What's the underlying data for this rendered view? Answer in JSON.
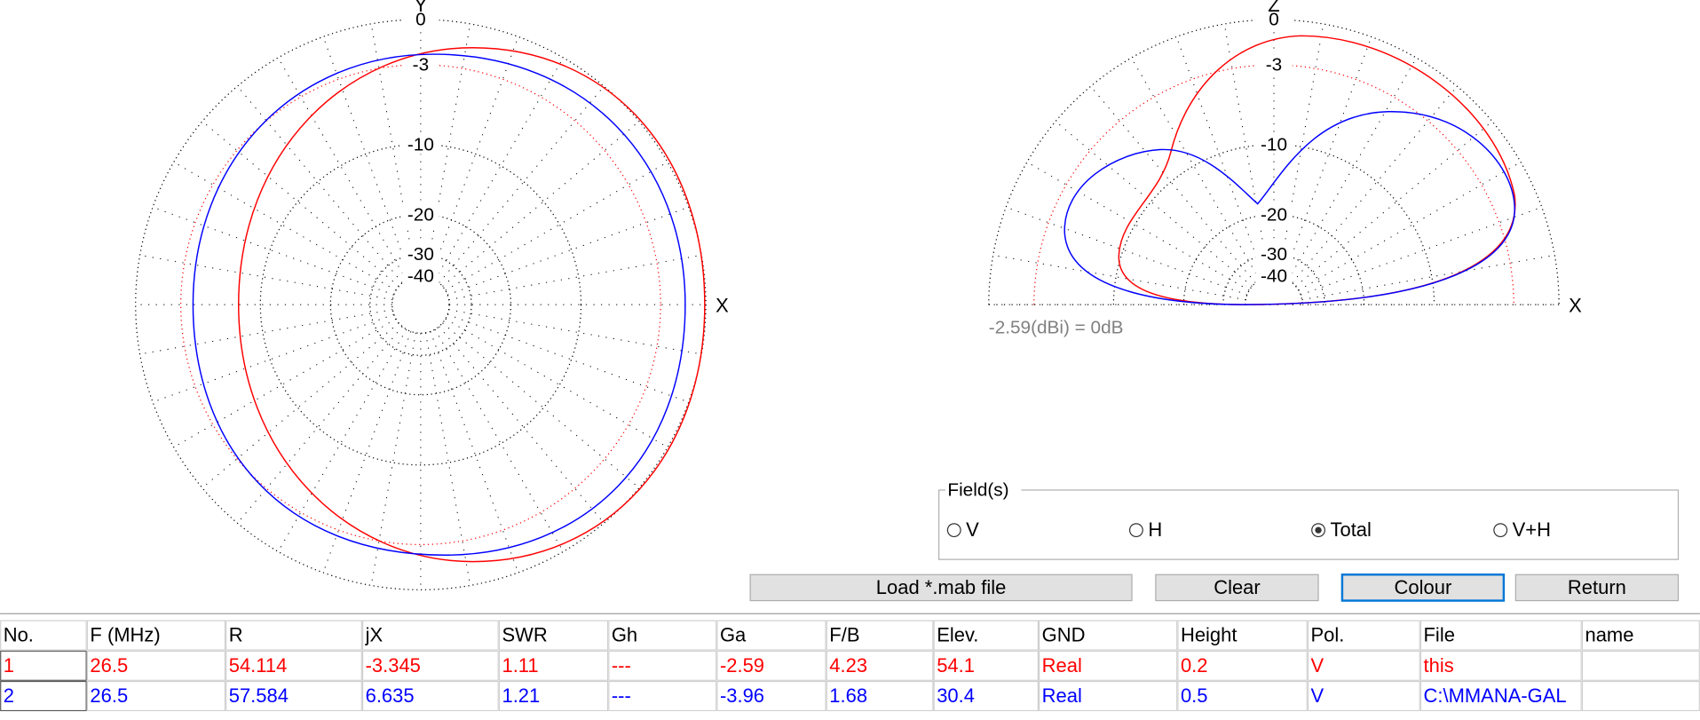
{
  "left_plot": {
    "axis_top": "Y",
    "axis_right": "X",
    "rings": [
      0,
      -3,
      -10,
      -20,
      -30,
      -40
    ],
    "reference_color": "#ff0000"
  },
  "right_plot": {
    "axis_top": "Z",
    "axis_right": "X",
    "rings": [
      0,
      -3,
      -10,
      -20,
      -30,
      -40
    ],
    "reference_color": "#ff0000",
    "reference": "-2.59(dBi) = 0dB"
  },
  "fields": {
    "title": "Field(s)",
    "options": [
      {
        "label": "V",
        "checked": false
      },
      {
        "label": "H",
        "checked": false
      },
      {
        "label": "Total",
        "checked": true
      },
      {
        "label": "V+H",
        "checked": false
      }
    ]
  },
  "buttons": [
    "Load *.mab file",
    "Clear",
    "Colour",
    "Return"
  ],
  "table": {
    "headers": [
      "No.",
      "F (MHz)",
      "R",
      "jX",
      "SWR",
      "Gh",
      "Ga",
      "F/B",
      "Elev.",
      "GND",
      "Height",
      "Pol.",
      "File",
      "name"
    ],
    "row_colors": [
      "#ff0000",
      "#0000ff"
    ],
    "rows": [
      [
        "1",
        "26.5",
        "54.114",
        "-3.345",
        "1.11",
        "---",
        "-2.59",
        "4.23",
        "54.1",
        "Real",
        "0.2",
        "V",
        "this",
        ""
      ],
      [
        "2",
        "26.5",
        "57.584",
        "6.635",
        "1.21",
        "---",
        "-3.96",
        "1.68",
        "30.4",
        "Real",
        "0.5",
        "V",
        "C:\\MMANA-GAL",
        ""
      ]
    ]
  }
}
